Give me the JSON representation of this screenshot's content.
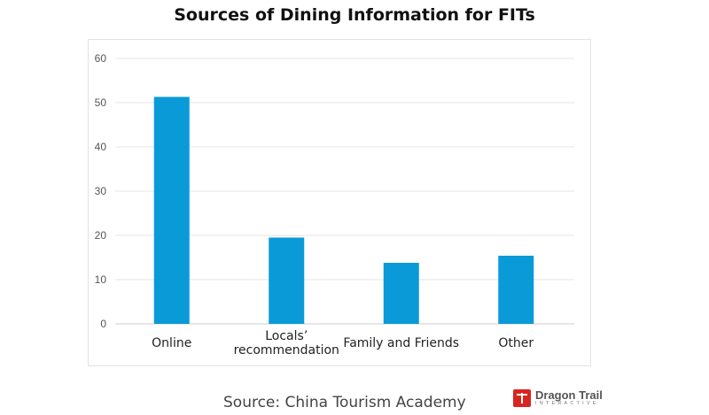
{
  "chart_data": {
    "type": "bar",
    "title": "Sources of Dining Information for FITs",
    "categories": [
      "Online",
      "Locals’ recommendation",
      "Family and Friends",
      "Other"
    ],
    "category_lines": [
      [
        "Online"
      ],
      [
        "Locals’",
        "recommendation"
      ],
      [
        "Family and Friends"
      ],
      [
        "Other"
      ]
    ],
    "values": [
      51.3,
      19.5,
      13.8,
      15.4
    ],
    "ylim": [
      0,
      60
    ],
    "yticks": [
      0,
      10,
      20,
      30,
      40,
      50,
      60
    ],
    "grid": true,
    "bar_color": "#0a9ad8",
    "xlabel": "",
    "ylabel": ""
  },
  "footer": {
    "source": "Source: China Tourism Academy",
    "logo_name": "Dragon Trail",
    "logo_sub": "INTERACTIVE",
    "logo_color": "#d8241f"
  }
}
